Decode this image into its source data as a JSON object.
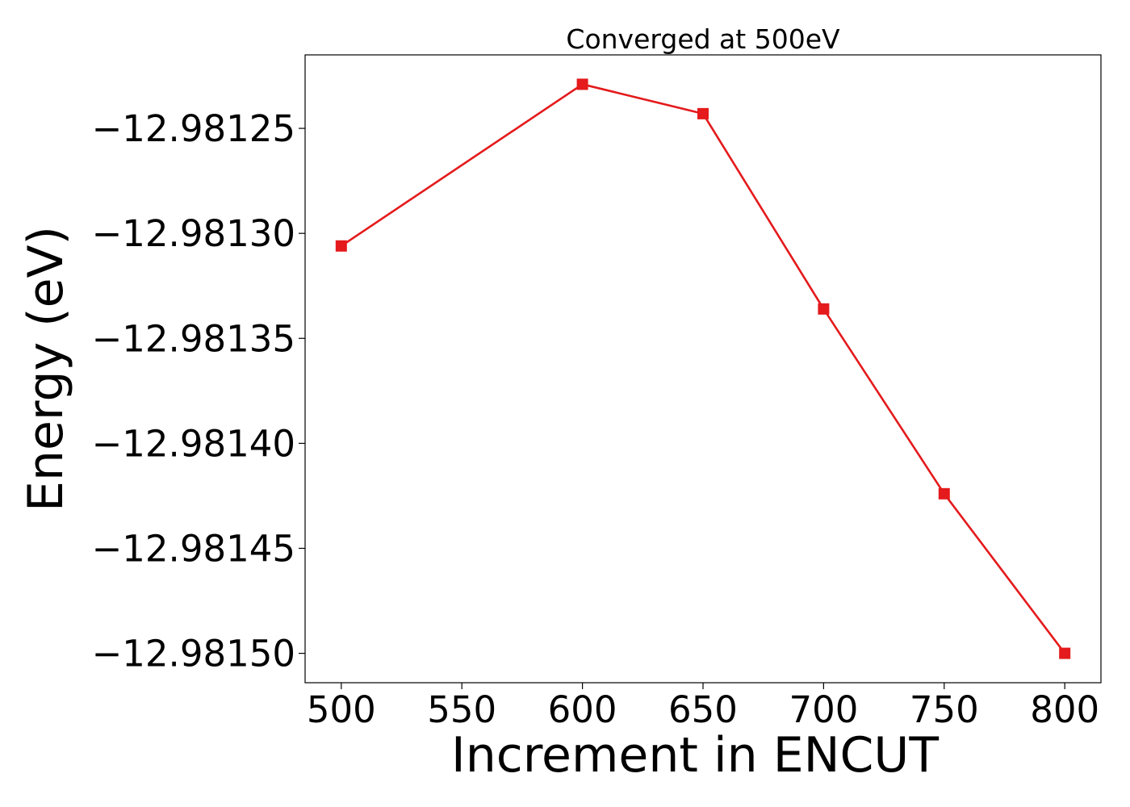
{
  "chart_data": {
    "type": "line",
    "title": "Converged at 500eV",
    "xlabel": "Increment in ENCUT",
    "ylabel": "Energy (eV)",
    "x": [
      500,
      600,
      650,
      700,
      750,
      800
    ],
    "series": [
      {
        "values": [
          -12.981306,
          -12.981229,
          -12.981243,
          -12.981336,
          -12.981424,
          -12.9815
        ],
        "color": "#e41a1c",
        "marker": "square"
      }
    ],
    "xlim": [
      485,
      815
    ],
    "ylim": [
      -12.981514,
      -12.981215
    ],
    "xticks": [
      500,
      550,
      600,
      650,
      700,
      750,
      800
    ],
    "xtick_labels": [
      "500",
      "550",
      "600",
      "650",
      "700",
      "750",
      "800"
    ],
    "yticks": [
      -12.98125,
      -12.9813,
      -12.98135,
      -12.9814,
      -12.98145,
      -12.9815
    ],
    "ytick_labels": [
      "−12.98125",
      "−12.98130",
      "−12.98135",
      "−12.98140",
      "−12.98145",
      "−12.98150"
    ],
    "grid": false,
    "legend": false
  }
}
